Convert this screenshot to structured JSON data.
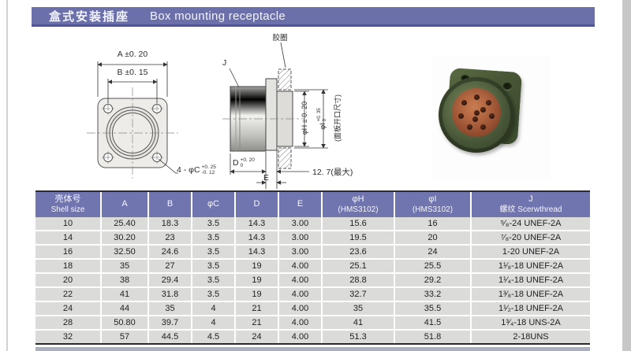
{
  "header": {
    "title_cn": "盒式安装插座",
    "title_en": "Box mounting receptacle"
  },
  "drawing": {
    "front": {
      "dim_a": "A ±0. 20",
      "dim_b": "B ±0. 15",
      "hole_label": "4 - φC",
      "hole_tol_top": "+0. 25",
      "hole_tol_bottom": "-0. 12"
    },
    "side": {
      "gasket": "胶圈",
      "thread": "J",
      "dim_h": "φH ± 0. 20",
      "dim_i": "φI",
      "dim_i_tol_top": "+0. 35",
      "dim_i_tol_bottom": "0",
      "panel_note": "(面板开口尺寸)",
      "dim_d": "D",
      "dim_d_tol_top": "+0. 20",
      "dim_d_tol_bottom": "0",
      "dim_e": "E",
      "dim_max": "12. 7(最大)"
    }
  },
  "photo": {
    "insert_holes": 10
  },
  "table": {
    "headers": [
      [
        "壳体号",
        "Shell size"
      ],
      [
        "A",
        ""
      ],
      [
        "B",
        ""
      ],
      [
        "φC",
        ""
      ],
      [
        "D",
        ""
      ],
      [
        "E",
        ""
      ],
      [
        "φH",
        "(HMS3102)"
      ],
      [
        "φI",
        "(HMS3102)"
      ],
      [
        "J",
        "螺纹  Scerwthread"
      ]
    ],
    "rows": [
      [
        "10",
        "25.40",
        "18.3",
        "3.5",
        "14.3",
        "3.00",
        "15.6",
        "16",
        "⁵⁄₈-24 UNEF-2A"
      ],
      [
        "14",
        "30.20",
        "23",
        "3.5",
        "14.3",
        "3.00",
        "19.5",
        "20",
        "⁷⁄₈-20 UNEF-2A"
      ],
      [
        "16",
        "32.50",
        "24.6",
        "3.5",
        "14.3",
        "3.00",
        "23.6",
        "24",
        "1-20 UNEF-2A"
      ],
      [
        "18",
        "35",
        "27",
        "3.5",
        "19",
        "4.00",
        "25.1",
        "25.5",
        "1¹⁄₈-18 UNEF-2A"
      ],
      [
        "20",
        "38",
        "29.4",
        "3.5",
        "19",
        "4.00",
        "28.8",
        "29.2",
        "1¹⁄₄-18 UNEF-2A"
      ],
      [
        "22",
        "41",
        "31.8",
        "3.5",
        "19",
        "4.00",
        "32.7",
        "33.2",
        "1³⁄₈-18 UNEF-2A"
      ],
      [
        "24",
        "44",
        "35",
        "4",
        "21",
        "4.00",
        "35",
        "35.5",
        "1¹⁄₂-18 UNEF-2A"
      ],
      [
        "28",
        "50.80",
        "39.7",
        "4",
        "21",
        "4.00",
        "41",
        "41.5",
        "1³⁄₄-18 UNS-2A"
      ],
      [
        "32",
        "57",
        "44.5",
        "4.5",
        "24",
        "4.00",
        "51.3",
        "51.8",
        "2-18UNS"
      ]
    ]
  },
  "colors": {
    "accent_purple": "#6b70ab",
    "table_header_purple": "#7175af",
    "row_gray": "#dbdbda",
    "connector_green": "#49583a",
    "insert_orange": "#a05534"
  }
}
